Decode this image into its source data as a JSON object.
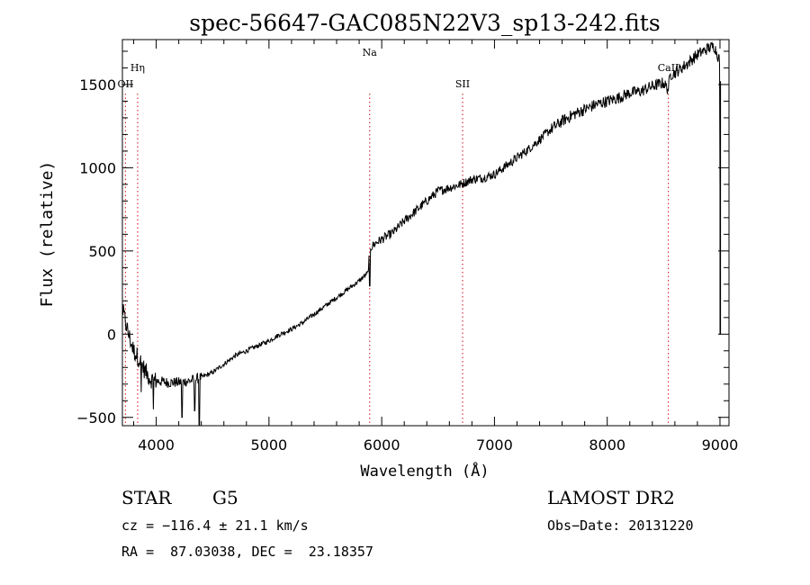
{
  "chart_data": {
    "type": "line",
    "title": "spec-56647-GAC085N22V3_sp13-242.fits",
    "xlabel": "Wavelength (Å)",
    "ylabel": "Flux (relative)",
    "xlim": [
      3700,
      9080
    ],
    "ylim": [
      -550,
      1770
    ],
    "grid": false,
    "x_ticks": [
      4000,
      5000,
      6000,
      7000,
      8000,
      9000
    ],
    "y_ticks": [
      -500,
      0,
      500,
      1000,
      1500
    ],
    "x_tick_labels": [
      "4000",
      "5000",
      "6000",
      "7000",
      "8000",
      "9000"
    ],
    "y_tick_labels": [
      "−500",
      "0",
      "500",
      "1000",
      "1500"
    ],
    "series": [
      {
        "x": [
          3700,
          3750,
          3800,
          3850,
          3900,
          3950,
          4000,
          4100,
          4200,
          4300,
          4400,
          4500,
          4600,
          4700,
          4800,
          4900,
          5000,
          5100,
          5200,
          5300,
          5400,
          5500,
          5600,
          5700,
          5800,
          5880,
          5890,
          5900,
          5950,
          6000,
          6100,
          6200,
          6300,
          6400,
          6500,
          6600,
          6700,
          6800,
          6900,
          7000,
          7100,
          7200,
          7300,
          7400,
          7500,
          7600,
          7700,
          7800,
          7900,
          8000,
          8100,
          8200,
          8300,
          8400,
          8500,
          8540,
          8560,
          8600,
          8700,
          8800,
          8900,
          8950,
          9000
        ],
        "y": [
          150,
          10,
          -100,
          -150,
          -220,
          -270,
          -280,
          -290,
          -290,
          -280,
          -260,
          -230,
          -180,
          -130,
          -100,
          -70,
          -40,
          0,
          30,
          70,
          120,
          170,
          220,
          270,
          320,
          370,
          500,
          520,
          550,
          570,
          610,
          680,
          740,
          800,
          860,
          880,
          900,
          930,
          940,
          960,
          1010,
          1060,
          1110,
          1170,
          1230,
          1280,
          1320,
          1350,
          1380,
          1400,
          1420,
          1450,
          1460,
          1490,
          1510,
          1470,
          1560,
          1570,
          1620,
          1680,
          1720,
          1730,
          1640
        ]
      }
    ],
    "absorption_lines": [
      {
        "label": "Hη",
        "wavelength": 3835,
        "label_row": "top-2"
      },
      {
        "label": "OII",
        "wavelength": 3727,
        "label_row": "top-3"
      },
      {
        "label": "Na",
        "wavelength": 5893,
        "label_row": "top-1"
      },
      {
        "label": "SII",
        "wavelength": 6717,
        "label_row": "top-3"
      },
      {
        "label": "CaII",
        "wavelength": 8542,
        "label_row": "top-2"
      }
    ],
    "line_color": "#000000",
    "marker_line_color": "#d9343b"
  },
  "footer": {
    "object_class": "STAR",
    "subclass": "G5",
    "survey": "LAMOST DR2",
    "cz_text": "cz = −116.4 ± 21.1 km/s",
    "obs_date_text": "Obs−Date: 20131220",
    "coords_text": "RA =  87.03038, DEC =  23.18357"
  }
}
